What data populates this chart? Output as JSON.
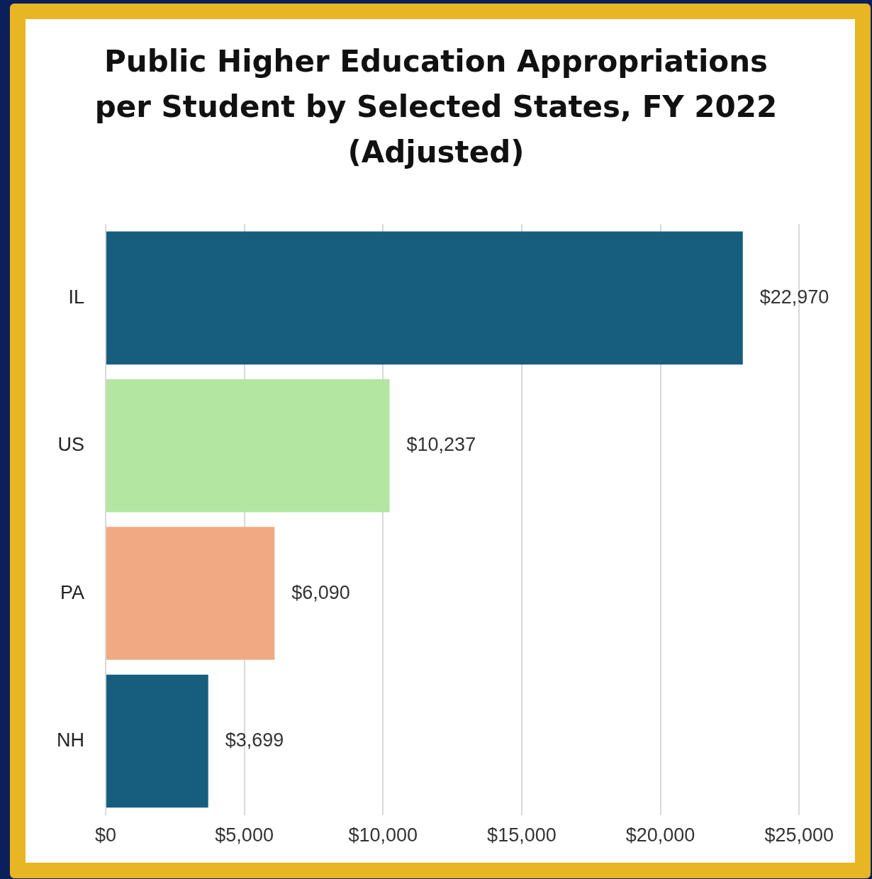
{
  "chart_data": {
    "type": "bar",
    "orientation": "horizontal",
    "title": "Public Higher Education Appropriations per Student by Selected States, FY 2022 (Adjusted)",
    "categories": [
      "IL",
      "US",
      "PA",
      "NH"
    ],
    "values": [
      22970,
      10237,
      6090,
      3699
    ],
    "colors": [
      "#175e7e",
      "#b3e6a1",
      "#f0a982",
      "#175e7e"
    ],
    "value_labels": [
      "$22,970",
      "$10,237",
      "$6,090",
      "$3,699"
    ],
    "xlim": [
      0,
      25000
    ],
    "xticks": [
      {
        "value": 0,
        "label": "$0"
      },
      {
        "value": 5000,
        "label": "$5,000"
      },
      {
        "value": 10000,
        "label": "$10,000"
      },
      {
        "value": 15000,
        "label": "$15,000"
      },
      {
        "value": 20000,
        "label": "$20,000"
      },
      {
        "value": 25000,
        "label": "$25,000"
      }
    ],
    "grid": "x"
  }
}
